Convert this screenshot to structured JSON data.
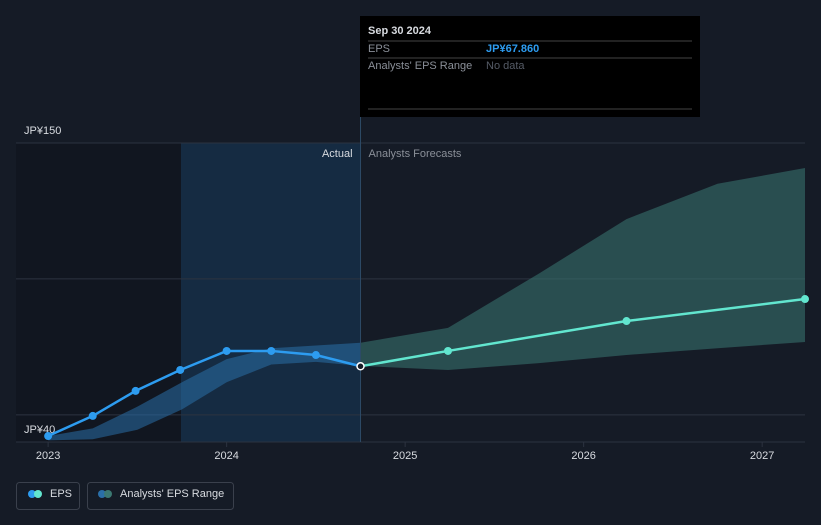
{
  "chart_data": {
    "type": "line",
    "xlim": [
      2022.82,
      2027.24
    ],
    "xticks": [
      2023,
      2024,
      2025,
      2026,
      2027
    ],
    "ylim": [
      40,
      150
    ],
    "yticks": [
      {
        "value": 40,
        "label": "JP¥40"
      },
      {
        "value": 150,
        "label": "JP¥150"
      }
    ],
    "gridlines": [
      50,
      100,
      150
    ],
    "actual_end": 2024.75,
    "actual_label": "Actual",
    "forecast_label": "Analysts Forecasts",
    "series": [
      {
        "name": "EPS",
        "color": "#2d9cf0",
        "forecast_color": "#62e6cf",
        "x": [
          2023.0,
          2023.25,
          2023.49,
          2023.74,
          2024.0,
          2024.25,
          2024.5,
          2024.75,
          2025.24,
          2026.24,
          2027.24
        ],
        "values": [
          42.2,
          49.6,
          58.8,
          66.5,
          73.5,
          73.5,
          72.0,
          67.86,
          73.5,
          84.5,
          92.6
        ]
      }
    ],
    "range": {
      "name": "Analysts' EPS Range",
      "color": "#2a6fa8",
      "forecast_color": "#3b7872",
      "x": [
        2023.0,
        2023.25,
        2023.5,
        2023.75,
        2024.0,
        2024.25,
        2024.5,
        2024.75,
        2025.24,
        2025.75,
        2026.24,
        2026.75,
        2027.24
      ],
      "low": [
        40.6,
        41.0,
        44.5,
        52.0,
        62.0,
        68.5,
        69.5,
        68.0,
        66.5,
        69.0,
        72.0,
        74.5,
        76.8
      ],
      "high": [
        42.2,
        45.0,
        53.0,
        62.0,
        70.5,
        74.5,
        75.5,
        76.5,
        82.0,
        102.0,
        122.0,
        135.0,
        140.8
      ]
    },
    "tooltip": {
      "date": "Sep 30 2024",
      "rows": [
        {
          "label": "EPS",
          "value": "JP¥67.860"
        },
        {
          "label": "Analysts' EPS Range",
          "value": "No data"
        }
      ]
    }
  }
}
